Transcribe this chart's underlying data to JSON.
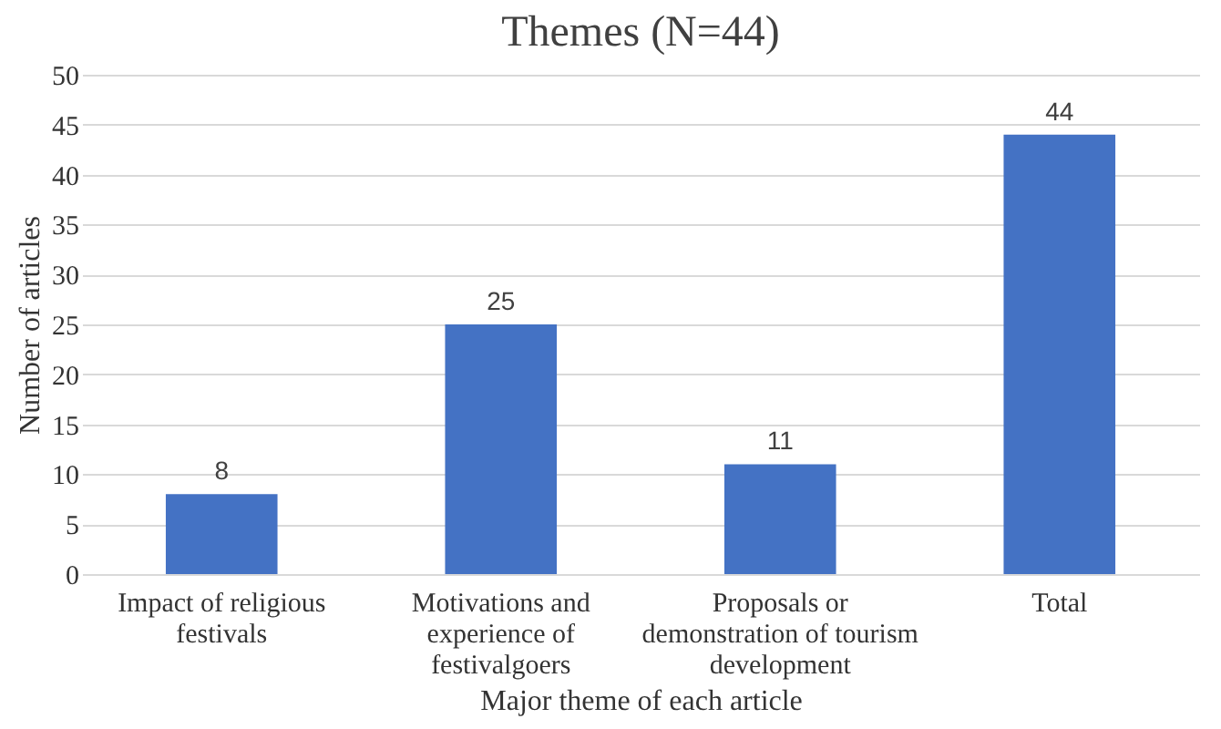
{
  "chart_data": {
    "type": "bar",
    "title": "Themes (N=44)",
    "xlabel": "Major theme of each article",
    "ylabel": "Number of articles",
    "categories": [
      "Impact of religious festivals",
      "Motivations and experience of festivalgoers",
      "Proposals or demonstration of tourism development",
      "Total"
    ],
    "values": [
      8,
      25,
      11,
      44
    ],
    "color": "#4472c4",
    "ylim": [
      0,
      50
    ],
    "yticks": [
      0,
      5,
      10,
      15,
      20,
      25,
      30,
      35,
      40,
      45,
      50
    ],
    "grid": "y",
    "data_labels": true
  }
}
